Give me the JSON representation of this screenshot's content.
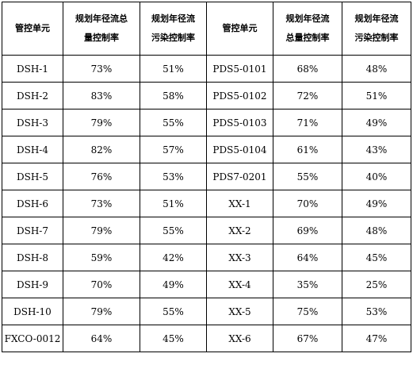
{
  "headers": [
    {
      "lines": [
        "管控单元"
      ]
    },
    {
      "lines": [
        "规划年径流总",
        "量控制率"
      ]
    },
    {
      "lines": [
        "规划年径流",
        "污染控制率"
      ]
    },
    {
      "lines": [
        "管控单元"
      ]
    },
    {
      "lines": [
        "规划年径流",
        "总量控制率"
      ]
    },
    {
      "lines": [
        "规划年径流",
        "污染控制率"
      ]
    }
  ],
  "rows": [
    [
      "DSH-1",
      "73%",
      "51%",
      "PDS5-0101",
      "68%",
      "48%"
    ],
    [
      "DSH-2",
      "83%",
      "58%",
      "PDS5-0102",
      "72%",
      "51%"
    ],
    [
      "DSH-3",
      "79%",
      "55%",
      "PDS5-0103",
      "71%",
      "49%"
    ],
    [
      "DSH-4",
      "82%",
      "57%",
      "PDS5-0104",
      "61%",
      "43%"
    ],
    [
      "DSH-5",
      "76%",
      "53%",
      "PDS7-0201",
      "55%",
      "40%"
    ],
    [
      "DSH-6",
      "73%",
      "51%",
      "XX-1",
      "70%",
      "49%"
    ],
    [
      "DSH-7",
      "79%",
      "55%",
      "XX-2",
      "69%",
      "48%"
    ],
    [
      "DSH-8",
      "59%",
      "42%",
      "XX-3",
      "64%",
      "45%"
    ],
    [
      "DSH-9",
      "70%",
      "49%",
      "XX-4",
      "35%",
      "25%"
    ],
    [
      "DSH-10",
      "79%",
      "55%",
      "XX-5",
      "75%",
      "53%"
    ],
    [
      "FXCO-0012",
      "64%",
      "45%",
      "XX-6",
      "67%",
      "47%"
    ]
  ]
}
